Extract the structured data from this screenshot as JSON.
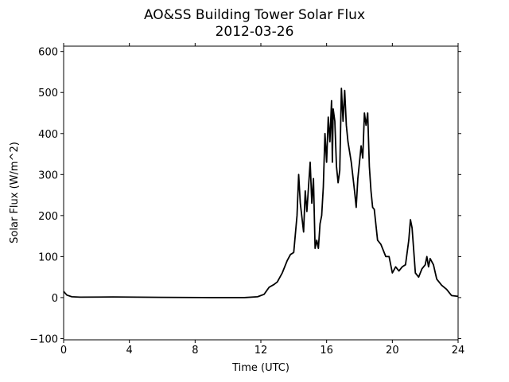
{
  "chart_data": {
    "type": "line",
    "title": "AO&SS Building Tower Solar Flux",
    "subtitle": "2012-03-26",
    "xlabel": "Time (UTC)",
    "ylabel": "Solar Flux (W/m^2)",
    "color": "#000000",
    "xlim": [
      0,
      24
    ],
    "xticks": [
      0,
      4,
      8,
      12,
      16,
      20,
      24
    ],
    "ylim": [
      -103,
      613
    ],
    "yticks": [
      {
        "value": -100,
        "label": "−100"
      },
      0,
      100,
      200,
      300,
      400,
      500,
      600
    ],
    "x": [
      0,
      0.2,
      0.5,
      1,
      3,
      6,
      9,
      11,
      11.8,
      12.2,
      12.5,
      12.8,
      13,
      13.3,
      13.6,
      13.8,
      14,
      14.2,
      14.3,
      14.4,
      14.6,
      14.7,
      14.8,
      14.9,
      15,
      15.1,
      15.2,
      15.3,
      15.4,
      15.5,
      15.6,
      15.7,
      15.8,
      15.9,
      16,
      16.1,
      16.2,
      16.3,
      16.35,
      16.4,
      16.5,
      16.6,
      16.7,
      16.8,
      16.9,
      17,
      17.1,
      17.2,
      17.3,
      17.5,
      17.7,
      17.8,
      17.9,
      18,
      18.1,
      18.2,
      18.3,
      18.4,
      18.5,
      18.6,
      18.7,
      18.8,
      18.9,
      19.1,
      19.3,
      19.6,
      19.8,
      20,
      20.2,
      20.4,
      20.6,
      20.8,
      21,
      21.1,
      21.2,
      21.4,
      21.6,
      21.8,
      22,
      22.1,
      22.2,
      22.3,
      22.5,
      22.7,
      23,
      23.3,
      23.6,
      24
    ],
    "values": [
      15,
      6,
      2,
      1,
      1.5,
      0.5,
      0,
      0,
      2,
      8,
      25,
      32,
      38,
      60,
      90,
      105,
      110,
      200,
      300,
      230,
      160,
      260,
      210,
      270,
      330,
      230,
      290,
      120,
      140,
      120,
      180,
      200,
      270,
      400,
      330,
      440,
      380,
      480,
      330,
      460,
      430,
      320,
      280,
      310,
      510,
      430,
      505,
      420,
      380,
      330,
      260,
      220,
      290,
      330,
      370,
      340,
      450,
      420,
      450,
      320,
      260,
      220,
      215,
      140,
      130,
      100,
      100,
      60,
      75,
      65,
      75,
      80,
      140,
      190,
      170,
      60,
      50,
      70,
      80,
      100,
      75,
      95,
      80,
      45,
      30,
      20,
      5,
      3
    ]
  }
}
